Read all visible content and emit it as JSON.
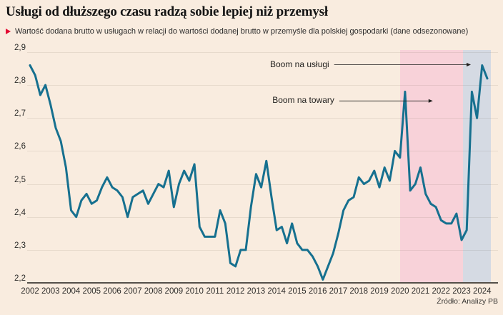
{
  "header": {
    "title": "Usługi od dłuższego czasu radzą sobie lepiej niż przemysł",
    "subtitle": "Wartość dodana brutto w usługach w relacji do wartości dodanej brutto w przemyśle dla polskiej gospodarki (dane odsezonowane)"
  },
  "source": "Źródło: Analizy PB",
  "colors": {
    "background": "#f9ecdf",
    "line": "#16708f",
    "region_pink": "#f8d2d9",
    "region_blue": "#d5dae3",
    "accent_red": "#e30a32",
    "axis": "#55504a"
  },
  "chart_data": {
    "type": "line",
    "title": "Usługi od dłuższego czasu radzą sobie lepiej niż przemysł",
    "subtitle": "Wartość dodana brutto w usługach w relacji do wartości dodanej brutto w przemyśle dla polskiej gospodarki (dane odsezonowane)",
    "x_unit": "quarter",
    "start_year": 2002,
    "start_quarter": 1,
    "values": [
      2.86,
      2.83,
      2.77,
      2.8,
      2.74,
      2.67,
      2.63,
      2.55,
      2.42,
      2.4,
      2.45,
      2.47,
      2.44,
      2.45,
      2.49,
      2.52,
      2.49,
      2.48,
      2.46,
      2.4,
      2.46,
      2.47,
      2.48,
      2.44,
      2.47,
      2.5,
      2.49,
      2.54,
      2.43,
      2.5,
      2.54,
      2.51,
      2.56,
      2.37,
      2.34,
      2.34,
      2.34,
      2.42,
      2.38,
      2.26,
      2.25,
      2.3,
      2.3,
      2.43,
      2.53,
      2.49,
      2.57,
      2.46,
      2.36,
      2.37,
      2.32,
      2.38,
      2.32,
      2.3,
      2.3,
      2.28,
      2.25,
      2.21,
      2.25,
      2.29,
      2.35,
      2.42,
      2.45,
      2.46,
      2.52,
      2.5,
      2.51,
      2.54,
      2.49,
      2.55,
      2.51,
      2.6,
      2.58,
      2.78,
      2.48,
      2.5,
      2.55,
      2.47,
      2.44,
      2.43,
      2.39,
      2.38,
      2.38,
      2.41,
      2.33,
      2.36,
      2.78,
      2.7,
      2.86,
      2.82
    ],
    "ylim": [
      2.2,
      2.9
    ],
    "ytick_step": 0.1,
    "decimal_separator": ",",
    "xticks": [
      2002,
      2003,
      2004,
      2005,
      2006,
      2007,
      2008,
      2009,
      2010,
      2011,
      2012,
      2013,
      2014,
      2015,
      2016,
      2017,
      2018,
      2019,
      2020,
      2021,
      2022,
      2023,
      2024
    ],
    "grid": "horizontal",
    "regions": [
      {
        "name": "boom-na-towary-region",
        "from_year": 2020.0,
        "to_year": 2023.06,
        "color": "#f8d2d9"
      },
      {
        "name": "boom-na-uslugi-region",
        "from_year": 2023.06,
        "to_year": 2024.42,
        "color": "#d5dae3"
      }
    ],
    "annotations": [
      {
        "text": "Boom na usługi",
        "at_value": 2.862,
        "arrow_from_year": 2016.8,
        "arrow_to_year": 2023.45
      },
      {
        "text": "Boom na towary",
        "at_value": 2.752,
        "arrow_from_year": 2017.05,
        "arrow_to_year": 2021.6
      }
    ]
  }
}
